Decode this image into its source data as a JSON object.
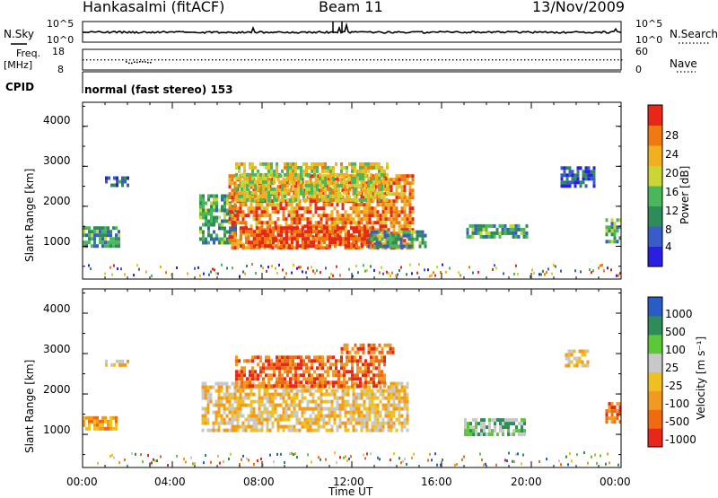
{
  "header": {
    "station": "Hankasalmi (fitACF)",
    "beam": "Beam 11",
    "date": "13/Nov/2009"
  },
  "top_panels": {
    "nsky_label": "N.Sky",
    "nsky_ticks": [
      "10^5",
      "10^0"
    ],
    "nsearch_label": "N.Search",
    "nsearch_ticks": [
      "10^5",
      "10^0"
    ],
    "freq_label": "Freq.",
    "freq_unit": "[MHz]",
    "freq_ticks": [
      "18",
      "8"
    ],
    "nave_label": "Nave",
    "nave_ticks": [
      "60",
      "0"
    ],
    "cpid_label": "CPID",
    "cpid_text": "normal (fast stereo) 153"
  },
  "chart_data": [
    {
      "type": "heatmap",
      "name": "power",
      "ylabel": "Slant Range [km]",
      "y_ticks": [
        1000,
        2000,
        3000,
        4000
      ],
      "ylim": [
        180,
        4600
      ],
      "colorbar_label": "Power [dB]",
      "colorbar_ticks": [
        4,
        8,
        12,
        16,
        20,
        24,
        28
      ],
      "colorbar_range": [
        0,
        30
      ],
      "colors": [
        "#2a1fe0",
        "#3a5cc8",
        "#2e8c5a",
        "#49b85a",
        "#c9d636",
        "#f0b020",
        "#f07a10",
        "#e8261a"
      ],
      "regions": [
        {
          "x": [
            0.0,
            1.6
          ],
          "y": [
            1050,
            1500
          ],
          "level": 2.2
        },
        {
          "x": [
            1.0,
            2.0
          ],
          "y": [
            2500,
            2750
          ],
          "level": 1.2
        },
        {
          "x": [
            5.2,
            6.8
          ],
          "y": [
            1100,
            2300
          ],
          "level": 2.5
        },
        {
          "x": [
            6.5,
            14.7
          ],
          "y": [
            1000,
            2800
          ],
          "level": 5.8
        },
        {
          "x": [
            7.0,
            13.0
          ],
          "y": [
            1000,
            1500
          ],
          "level": 7.0
        },
        {
          "x": [
            6.8,
            13.6
          ],
          "y": [
            2200,
            3100
          ],
          "level": 4.2
        },
        {
          "x": [
            12.7,
            15.3
          ],
          "y": [
            1000,
            1400
          ],
          "level": 2.2
        },
        {
          "x": [
            17.1,
            19.8
          ],
          "y": [
            1200,
            1550
          ],
          "level": 2.3
        },
        {
          "x": [
            21.3,
            22.8
          ],
          "y": [
            2500,
            3000
          ],
          "level": 1.0
        },
        {
          "x": [
            23.3,
            24.0
          ],
          "y": [
            1100,
            1700
          ],
          "level": 2.6
        }
      ]
    },
    {
      "type": "heatmap",
      "name": "velocity",
      "ylabel": "Slant Range [km]",
      "y_ticks": [
        1000,
        2000,
        3000,
        4000
      ],
      "ylim": [
        180,
        4600
      ],
      "colorbar_label": "Velocity [m s⁻¹]",
      "colorbar_ticks": [
        "1000",
        "500",
        "100",
        "25",
        "-25",
        "-100",
        "-500",
        "-1000"
      ],
      "colors": [
        "#e8261a",
        "#f06a10",
        "#f09a20",
        "#f0c020",
        "#c8c8c8",
        "#5cc838",
        "#2e8c5a",
        "#2a5cc8"
      ],
      "regions": [
        {
          "x": [
            0.0,
            1.5
          ],
          "y": [
            1100,
            1450
          ],
          "level": 2
        },
        {
          "x": [
            1.0,
            2.0
          ],
          "y": [
            2700,
            2850
          ],
          "level": 3
        },
        {
          "x": [
            5.3,
            14.5
          ],
          "y": [
            1100,
            2300
          ],
          "level": 3
        },
        {
          "x": [
            6.8,
            13.5
          ],
          "y": [
            2200,
            2950
          ],
          "level": 1
        },
        {
          "x": [
            11.5,
            13.8
          ],
          "y": [
            3050,
            3250
          ],
          "level": 1
        },
        {
          "x": [
            17.0,
            19.7
          ],
          "y": [
            1000,
            1400
          ],
          "level": 5
        },
        {
          "x": [
            23.3,
            24.0
          ],
          "y": [
            1300,
            1800
          ],
          "level": 1
        },
        {
          "x": [
            21.5,
            22.5
          ],
          "y": [
            2700,
            3100
          ],
          "level": 3
        }
      ]
    }
  ],
  "x_axis": {
    "label": "Time UT",
    "ticks": [
      "00:00",
      "04:00",
      "08:00",
      "12:00",
      "16:00",
      "20:00",
      "00:00"
    ],
    "range": [
      0,
      24
    ]
  }
}
